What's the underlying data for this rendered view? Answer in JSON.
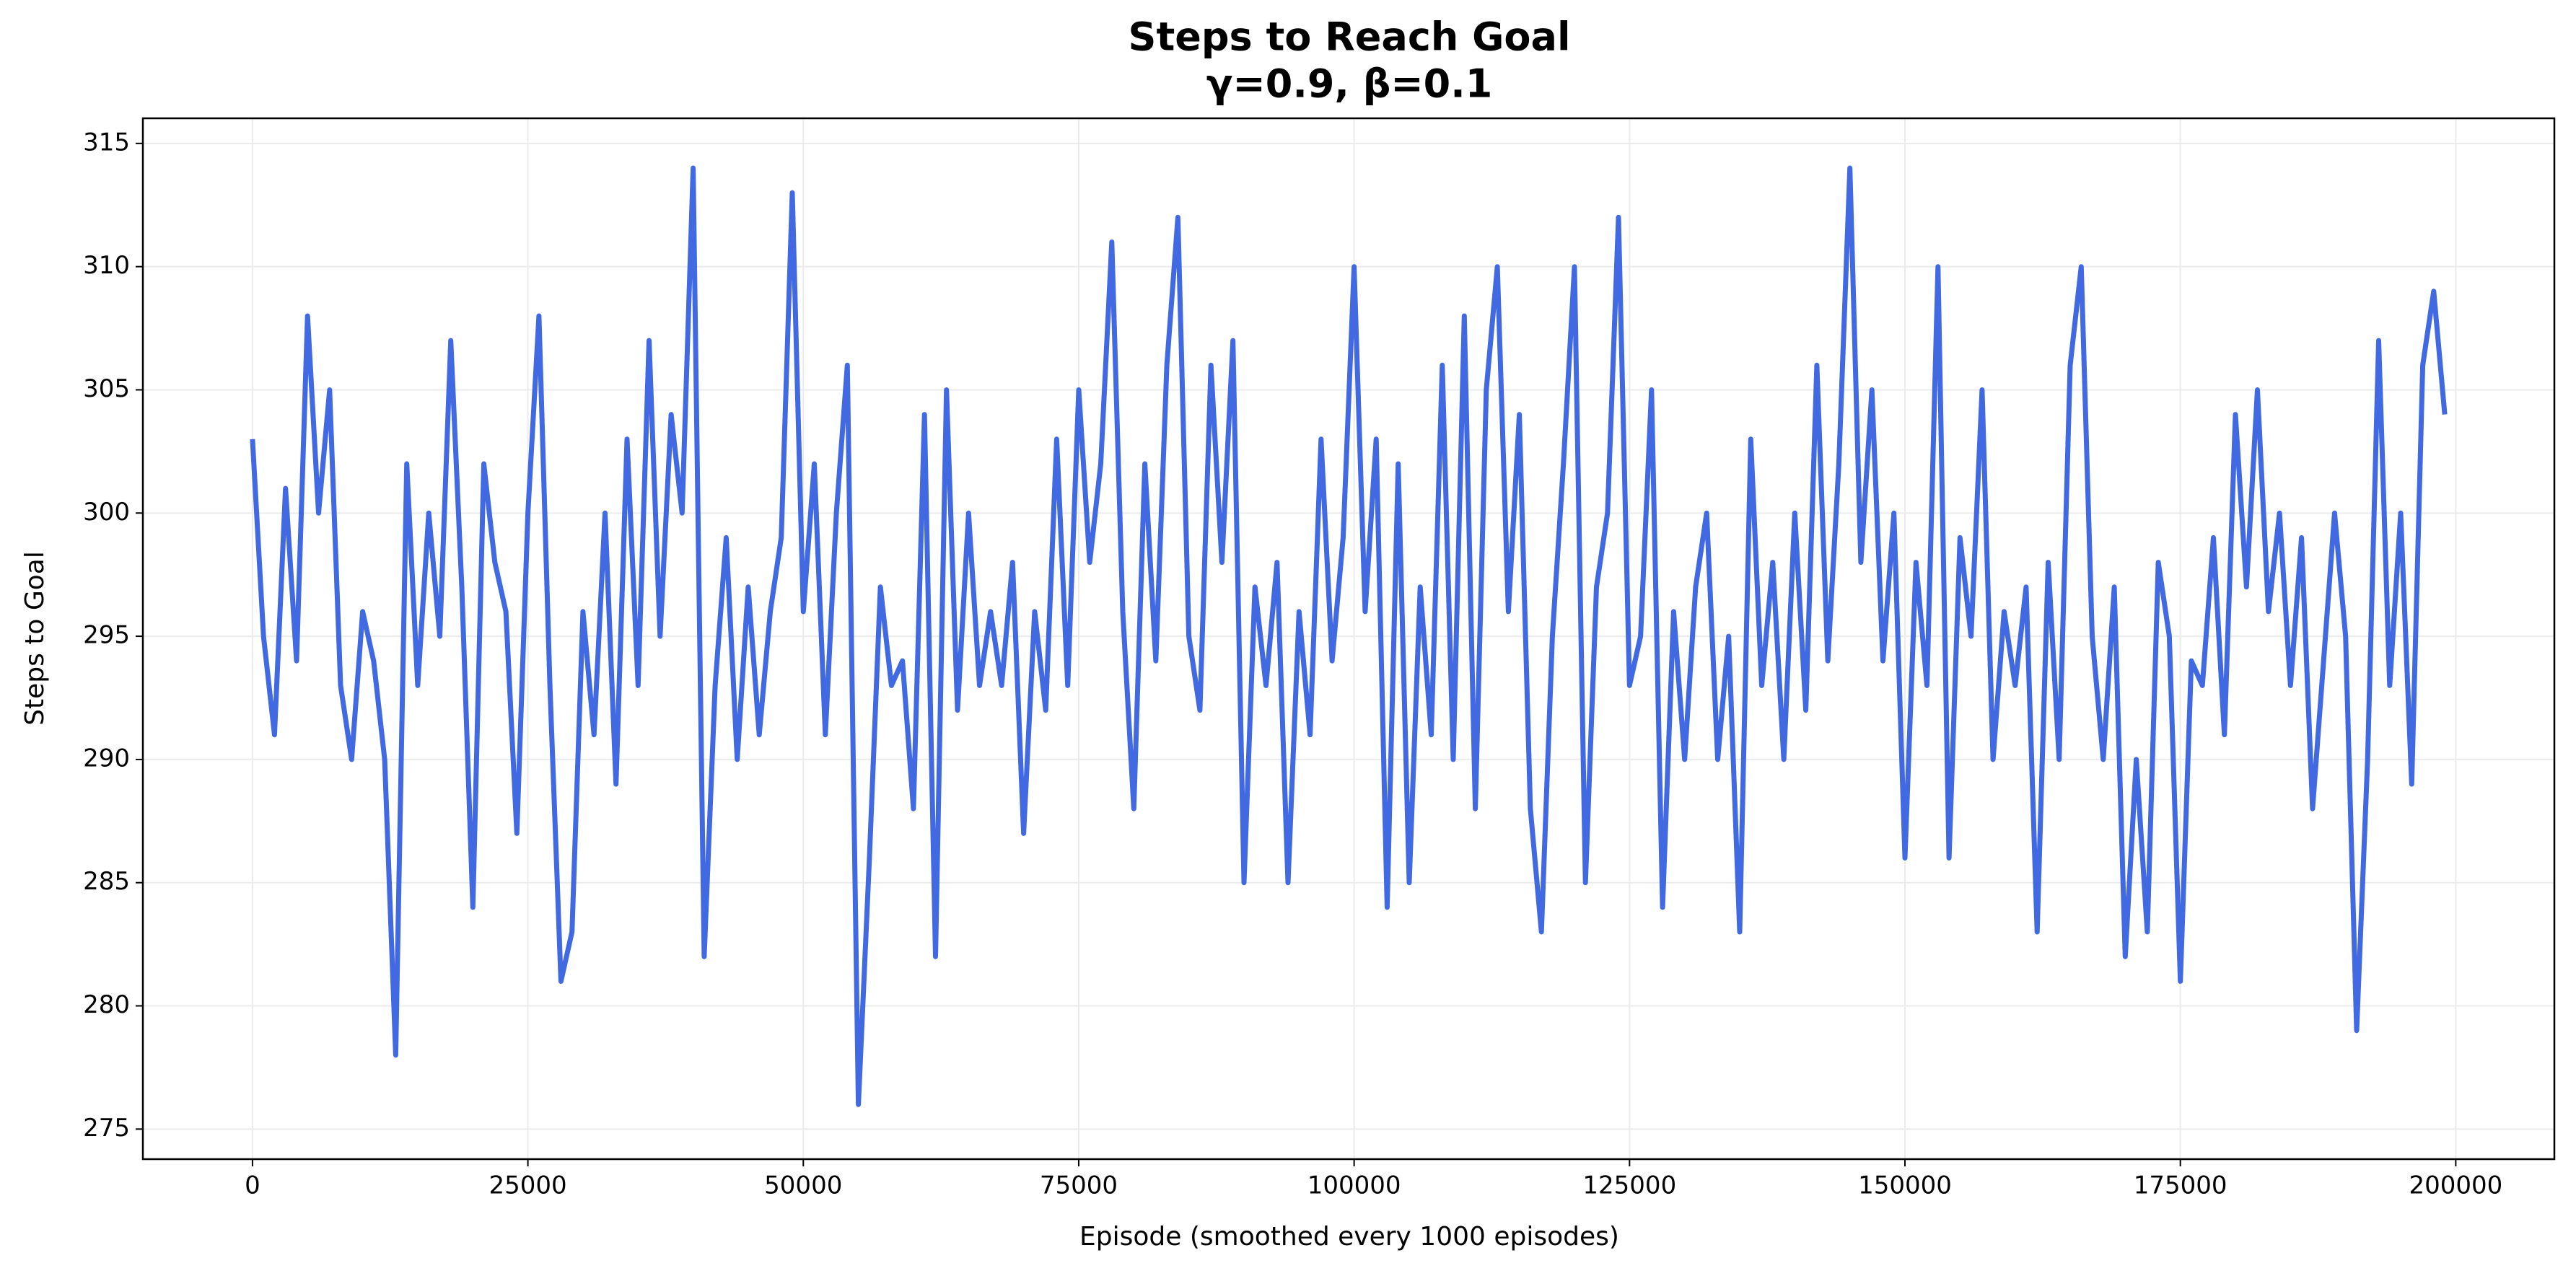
{
  "chart_data": {
    "type": "line",
    "title": "Steps to Reach Goal",
    "subtitle": "γ=0.9, β=0.1",
    "x_label": "Episode (smoothed every 1000 episodes)",
    "y_label": "Steps to Goal",
    "x": [
      0,
      1000,
      2000,
      3000,
      4000,
      5000,
      6000,
      7000,
      8000,
      9000,
      10000,
      11000,
      12000,
      13000,
      14000,
      15000,
      16000,
      17000,
      18000,
      19000,
      20000,
      21000,
      22000,
      23000,
      24000,
      25000,
      26000,
      27000,
      28000,
      29000,
      30000,
      31000,
      32000,
      33000,
      34000,
      35000,
      36000,
      37000,
      38000,
      39000,
      40000,
      41000,
      42000,
      43000,
      44000,
      45000,
      46000,
      47000,
      48000,
      49000,
      50000,
      51000,
      52000,
      53000,
      54000,
      55000,
      56000,
      57000,
      58000,
      59000,
      60000,
      61000,
      62000,
      63000,
      64000,
      65000,
      66000,
      67000,
      68000,
      69000,
      70000,
      71000,
      72000,
      73000,
      74000,
      75000,
      76000,
      77000,
      78000,
      79000,
      80000,
      81000,
      82000,
      83000,
      84000,
      85000,
      86000,
      87000,
      88000,
      89000,
      90000,
      91000,
      92000,
      93000,
      94000,
      95000,
      96000,
      97000,
      98000,
      99000,
      100000,
      101000,
      102000,
      103000,
      104000,
      105000,
      106000,
      107000,
      108000,
      109000,
      110000,
      111000,
      112000,
      113000,
      114000,
      115000,
      116000,
      117000,
      118000,
      119000,
      120000,
      121000,
      122000,
      123000,
      124000,
      125000,
      126000,
      127000,
      128000,
      129000,
      130000,
      131000,
      132000,
      133000,
      134000,
      135000,
      136000,
      137000,
      138000,
      139000,
      140000,
      141000,
      142000,
      143000,
      144000,
      145000,
      146000,
      147000,
      148000,
      149000,
      150000,
      151000,
      152000,
      153000,
      154000,
      155000,
      156000,
      157000,
      158000,
      159000,
      160000,
      161000,
      162000,
      163000,
      164000,
      165000,
      166000,
      167000,
      168000,
      169000,
      170000,
      171000,
      172000,
      173000,
      174000,
      175000,
      176000,
      177000,
      178000,
      179000,
      180000,
      181000,
      182000,
      183000,
      184000,
      185000,
      186000,
      187000,
      188000,
      189000,
      190000,
      191000,
      192000,
      193000,
      194000,
      195000,
      196000,
      197000,
      198000,
      199000
    ],
    "series": [
      {
        "name": "Steps to Goal",
        "color": "#4169e1",
        "values": [
          303,
          295,
          291,
          301,
          294,
          308,
          300,
          305,
          293,
          290,
          296,
          294,
          290,
          278,
          302,
          293,
          300,
          295,
          307,
          297,
          284,
          302,
          298,
          296,
          287,
          300,
          308,
          293,
          281,
          283,
          296,
          291,
          300,
          289,
          303,
          293,
          307,
          295,
          304,
          300,
          314,
          282,
          293,
          299,
          290,
          297,
          291,
          296,
          299,
          313,
          296,
          302,
          291,
          300,
          306,
          276,
          286,
          297,
          293,
          294,
          288,
          304,
          282,
          305,
          292,
          300,
          293,
          296,
          293,
          298,
          287,
          296,
          292,
          303,
          293,
          305,
          298,
          302,
          311,
          296,
          288,
          302,
          294,
          306,
          312,
          295,
          292,
          306,
          298,
          307,
          285,
          297,
          293,
          298,
          285,
          296,
          291,
          303,
          294,
          299,
          310,
          296,
          303,
          284,
          302,
          285,
          297,
          291,
          306,
          290,
          308,
          288,
          305,
          310,
          296,
          304,
          288,
          283,
          295,
          302,
          310,
          285,
          297,
          300,
          312,
          293,
          295,
          305,
          284,
          296,
          290,
          297,
          300,
          290,
          295,
          283,
          303,
          293,
          298,
          290,
          300,
          292,
          306,
          294,
          302,
          314,
          298,
          305,
          294,
          300,
          286,
          298,
          293,
          310,
          286,
          299,
          295,
          305,
          290,
          296,
          293,
          297,
          283,
          298,
          290,
          306,
          310,
          295,
          290,
          297,
          282,
          290,
          283,
          298,
          295,
          281,
          294,
          293,
          299,
          291,
          304,
          297,
          305,
          296,
          300,
          293,
          299,
          288,
          294,
          300,
          295,
          279,
          290,
          307,
          293,
          300,
          289,
          306,
          309,
          304
        ]
      }
    ],
    "xlim": [
      -9950,
      208950
    ],
    "ylim": [
      273.78,
      316.02
    ],
    "xticks": [
      0,
      25000,
      50000,
      75000,
      100000,
      125000,
      150000,
      175000,
      200000
    ],
    "yticks": [
      275,
      280,
      285,
      290,
      295,
      300,
      305,
      310,
      315
    ],
    "grid": true
  }
}
